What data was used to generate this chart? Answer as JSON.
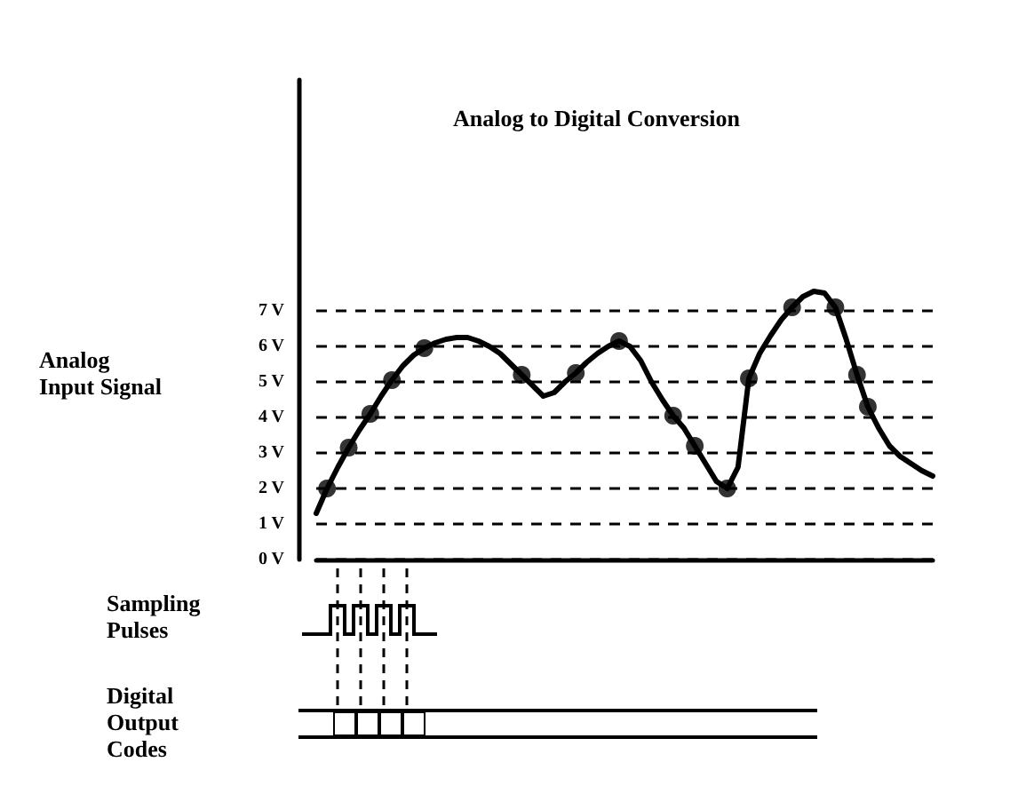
{
  "chart_data": {
    "type": "line",
    "title": "Analog to Digital Conversion",
    "ylabel": "Analog Input Signal",
    "annotations": [
      "Sampling Pulses",
      "Digital Output Codes"
    ],
    "categories": [
      null,
      null,
      null,
      null,
      null,
      null,
      null,
      null,
      null,
      null,
      null,
      null,
      null,
      null,
      null,
      null,
      null,
      null,
      null,
      null,
      null,
      null,
      null,
      null,
      null,
      null,
      null,
      null,
      null,
      null,
      null,
      null,
      null,
      null,
      null,
      null,
      null,
      null,
      null,
      null,
      null,
      null,
      null,
      null,
      null,
      null,
      null,
      null,
      null,
      null,
      null,
      null,
      null,
      null,
      null,
      null,
      null,
      null
    ],
    "ylim": [
      0,
      13.5
    ],
    "yticks": [
      {
        "value": 0,
        "label": "0 V"
      },
      {
        "value": 1,
        "label": "1 V"
      },
      {
        "value": 2,
        "label": "2 V"
      },
      {
        "value": 3,
        "label": "3 V"
      },
      {
        "value": 4,
        "label": "4 V"
      },
      {
        "value": 5,
        "label": "5 V"
      },
      {
        "value": 6,
        "label": "6 V"
      },
      {
        "value": 7,
        "label": "7 V"
      }
    ],
    "grid": "y",
    "line_style": "solid",
    "series": [
      {
        "color": "#000000",
        "marker": "none",
        "values": [
          1.3,
          2.0,
          2.6,
          3.15,
          3.65,
          4.1,
          4.6,
          5.05,
          5.45,
          5.75,
          5.95,
          6.1,
          6.2,
          6.25,
          6.25,
          6.15,
          6.0,
          5.8,
          5.5,
          5.2,
          4.9,
          4.6,
          4.7,
          5.0,
          5.25,
          5.55,
          5.8,
          6.0,
          6.15,
          6.0,
          5.6,
          5.0,
          4.5,
          4.05,
          3.7,
          3.2,
          2.7,
          2.2,
          2.0,
          2.6,
          5.1,
          5.8,
          6.3,
          6.75,
          7.1,
          7.4,
          7.55,
          7.5,
          7.1,
          6.2,
          5.2,
          4.3,
          3.7,
          3.2,
          2.9,
          2.7,
          2.5,
          2.35
        ]
      },
      {
        "type": "scatter",
        "color": "#000000",
        "marker": "circle",
        "values": [
          null,
          2.0,
          null,
          3.15,
          null,
          4.1,
          null,
          5.05,
          null,
          null,
          5.95,
          null,
          null,
          null,
          null,
          null,
          null,
          null,
          null,
          5.2,
          null,
          null,
          null,
          null,
          5.25,
          null,
          null,
          null,
          6.15,
          null,
          null,
          null,
          null,
          4.05,
          null,
          3.2,
          null,
          null,
          2.0,
          null,
          5.1,
          null,
          null,
          null,
          7.1,
          null,
          null,
          null,
          7.1,
          null,
          5.2,
          4.3,
          null,
          null,
          null,
          null,
          null,
          null
        ]
      }
    ]
  }
}
